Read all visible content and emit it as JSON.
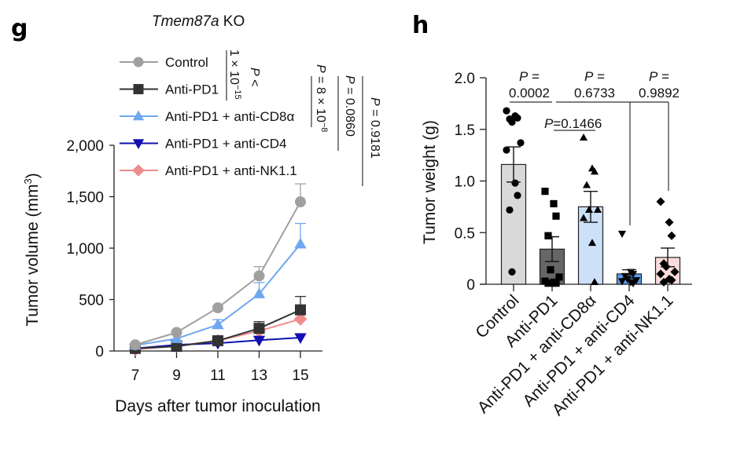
{
  "chart_data": [
    {
      "panel": "g",
      "type": "line",
      "title_italic": "Tmem87a",
      "title_rest": " KO",
      "xlabel": "Days after tumor inoculation",
      "ylabel": "Tumor volume (mm",
      "ylabel_sup": "3",
      "ylabel_close": ")",
      "x": [
        7,
        9,
        11,
        13,
        15
      ],
      "x_tick_labels": [
        "7",
        "9",
        "11",
        "13",
        "15"
      ],
      "ylim": [
        0,
        2000
      ],
      "y_ticks": [
        0,
        500,
        1000,
        1500,
        2000
      ],
      "y_tick_labels": [
        "0",
        "500",
        "1,000",
        "1,500",
        "2,000"
      ],
      "grid": false,
      "legend_position": "top",
      "series": [
        {
          "name": "Control",
          "color": "#a0a0a0",
          "marker": "circle",
          "values": [
            60,
            180,
            420,
            730,
            1450
          ],
          "error_upper": [
            0,
            0,
            0,
            820,
            1625
          ]
        },
        {
          "name": "Anti-PD1",
          "color": "#333333",
          "marker": "square",
          "values": [
            25,
            45,
            100,
            220,
            400
          ],
          "error_upper": [
            0,
            0,
            0,
            285,
            530
          ]
        },
        {
          "name": "Anti-PD1 + anti-CD8α",
          "color": "#6fa8f0",
          "marker": "triangle-up",
          "values": [
            55,
            120,
            255,
            555,
            1040
          ],
          "error_upper": [
            0,
            0,
            305,
            665,
            1240
          ]
        },
        {
          "name": "Anti-PD1 + anti-CD4",
          "color": "#1010b0",
          "marker": "triangle-down",
          "values": [
            25,
            60,
            75,
            105,
            130
          ],
          "error_upper": [
            0,
            0,
            0,
            0,
            0
          ]
        },
        {
          "name": "Anti-PD1 + anti-NK1.1",
          "color": "#f08c8c",
          "marker": "diamond",
          "values": [
            15,
            50,
            100,
            195,
            310
          ],
          "error_upper": [
            0,
            0,
            0,
            0,
            0
          ]
        }
      ],
      "annotations": [
        {
          "line1": "P <",
          "line2": "1 × 10",
          "sup": "−15",
          "compares": [
            "Control",
            "Anti-PD1"
          ]
        },
        {
          "line1": "P = 8 × 10",
          "sup": "−8",
          "compares": [
            "Anti-PD1",
            "Anti-PD1 + anti-CD8α"
          ]
        },
        {
          "line1": "P = 0.0860",
          "compares": [
            "Anti-PD1",
            "Anti-PD1 + anti-CD4"
          ]
        },
        {
          "line1": "P = 0.9181",
          "compares": [
            "Anti-PD1",
            "Anti-PD1 + anti-NK1.1"
          ]
        }
      ]
    },
    {
      "panel": "h",
      "type": "bar",
      "ylabel": "Tumor weight (g)",
      "xlabel": "",
      "ylim": [
        0,
        2.0
      ],
      "y_ticks": [
        0,
        0.5,
        1.0,
        1.5,
        2.0
      ],
      "y_tick_labels": [
        "0",
        "0.5",
        "1.0",
        "1.5",
        "2.0"
      ],
      "grid": false,
      "categories": [
        "Control",
        "Anti-PD1",
        "Anti-PD1 + anti-CD8α",
        "Anti-PD1 + anti-CD4",
        "Anti-PD1 + anti-NK1.1"
      ],
      "values": [
        1.16,
        0.34,
        0.75,
        0.1,
        0.26
      ],
      "sem": [
        0.17,
        0.12,
        0.15,
        0.04,
        0.09
      ],
      "bar_colors": [
        "#d9d9d9",
        "#666666",
        "#cce0f7",
        "#5b9bf0",
        "#fadcdc"
      ],
      "markers": [
        "circle",
        "square",
        "triangle-up",
        "triangle-down",
        "diamond"
      ],
      "points": [
        [
          1.68,
          1.63,
          1.61,
          1.6,
          1.57,
          1.37,
          1.3,
          0.98,
          0.86,
          0.72,
          0.12
        ],
        [
          0.9,
          0.78,
          0.66,
          0.47,
          0.14,
          0.07,
          0.03,
          0.02,
          0.01,
          0.01
        ],
        [
          1.42,
          1.12,
          1.09,
          0.96,
          0.72,
          0.72,
          0.64,
          0.4,
          0.02
        ],
        [
          0.49,
          0.12,
          0.1,
          0.08,
          0.05,
          0.04,
          0.03,
          0.02,
          0.01
        ],
        [
          0.8,
          0.6,
          0.47,
          0.2,
          0.17,
          0.12,
          0.1,
          0.05,
          0.04,
          0.02
        ]
      ],
      "annotations": [
        {
          "label_line1": "P =",
          "label_line2": "0.0002",
          "compares": [
            "Control",
            "Anti-PD1"
          ]
        },
        {
          "label_line1": "P =",
          "label_line2": "0.6733",
          "compares": [
            "Anti-PD1",
            "Anti-PD1 + anti-CD4"
          ]
        },
        {
          "label_line1": "P =",
          "label_line2": "0.9892",
          "compares": [
            "Anti-PD1",
            "Anti-PD1 + anti-NK1.1"
          ]
        },
        {
          "label_italic": "P",
          "label_rest": "=0.1466",
          "compares": [
            "Anti-PD1",
            "Anti-PD1 + anti-CD8α"
          ]
        }
      ]
    }
  ],
  "panel_labels": {
    "g": "g",
    "h": "h"
  }
}
